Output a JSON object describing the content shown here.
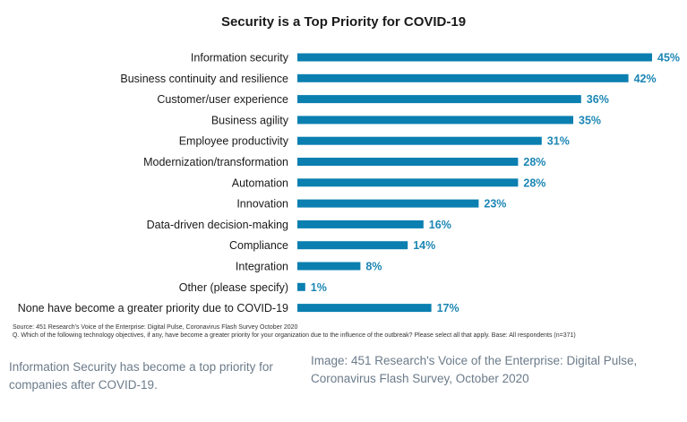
{
  "chart_data": {
    "type": "bar",
    "orientation": "horizontal",
    "title": "Security is a Top Priority for COVID-19",
    "categories": [
      "Information security",
      "Business continuity and resilience",
      "Customer/user experience",
      "Business agility",
      "Employee productivity",
      "Modernization/transformation",
      "Automation",
      "Innovation",
      "Data-driven decision-making",
      "Compliance",
      "Integration",
      "Other (please specify)",
      "None have become a greater priority due to COVID-19"
    ],
    "values": [
      45,
      42,
      36,
      35,
      31,
      28,
      28,
      23,
      16,
      14,
      8,
      1,
      17
    ],
    "value_labels": [
      "45%",
      "42%",
      "36%",
      "35%",
      "31%",
      "28%",
      "28%",
      "23%",
      "16%",
      "14%",
      "8%",
      "1%",
      "17%"
    ],
    "bar_color": "#0a7fb0",
    "label_color": "#1c86b4",
    "xlim": [
      0,
      45
    ],
    "grid": false,
    "legend": "none"
  },
  "source": {
    "line1": "Source: 451 Research's Voice of the Enterprise: Digital Pulse, Coronavirus Flash Survey October 2020",
    "line2": "Q. Which of the following technology objectives, if any, have become a greater priority for your organization due to the influence of the outbreak? Please select all that apply. Base: All respondents (n=371)"
  },
  "captions": {
    "left": "Information Security has become a top priority for companies after COVID-19.",
    "right": "Image: 451 Research's Voice of the Enterprise: Digital Pulse, Coronavirus Flash Survey, October 2020"
  }
}
